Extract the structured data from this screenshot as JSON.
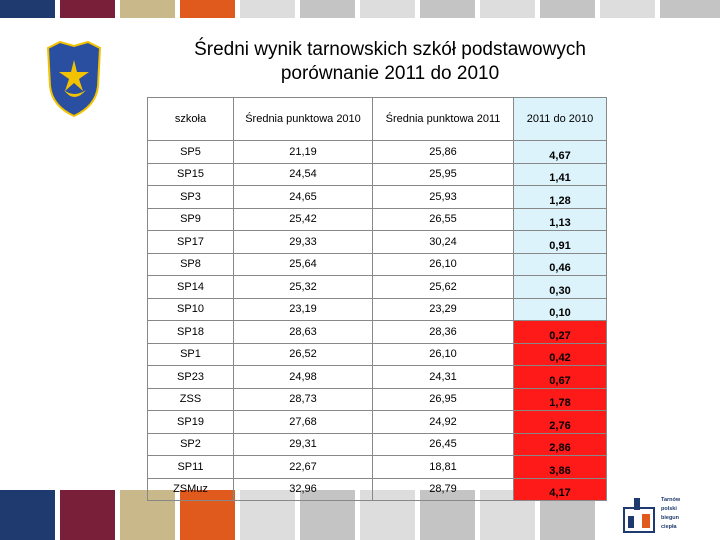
{
  "title": [
    "Średni wynik tarnowskich szkół podstawowych",
    "porównanie 2011 do 2010"
  ],
  "table": {
    "header": [
      "szkoła",
      "Średnia punktowa 2010",
      "Średnia punktowa 2011",
      "2011 do 2010"
    ],
    "rows": [
      {
        "school": "SP5",
        "avg2010": "21,19",
        "avg2011": "25,86",
        "change": "4,67",
        "color": "#dcf3fb"
      },
      {
        "school": "SP15",
        "avg2010": "24,54",
        "avg2011": "25,95",
        "change": "1,41",
        "color": "#dcf3fb"
      },
      {
        "school": "SP3",
        "avg2010": "24,65",
        "avg2011": "25,93",
        "change": "1,28",
        "color": "#dcf3fb"
      },
      {
        "school": "SP9",
        "avg2010": "25,42",
        "avg2011": "26,55",
        "change": "1,13",
        "color": "#dcf3fb"
      },
      {
        "school": "SP17",
        "avg2010": "29,33",
        "avg2011": "30,24",
        "change": "0,91",
        "color": "#dcf3fb"
      },
      {
        "school": "SP8",
        "avg2010": "25,64",
        "avg2011": "26,10",
        "change": "0,46",
        "color": "#dcf3fb"
      },
      {
        "school": "SP14",
        "avg2010": "25,32",
        "avg2011": "25,62",
        "change": "0,30",
        "color": "#dcf3fb"
      },
      {
        "school": "SP10",
        "avg2010": "23,19",
        "avg2011": "23,29",
        "change": "0,10",
        "color": "#dcf3fb"
      },
      {
        "school": "SP18",
        "avg2010": "28,63",
        "avg2011": "28,36",
        "change": "0,27",
        "color": "#ff1a1a"
      },
      {
        "school": "SP1",
        "avg2010": "26,52",
        "avg2011": "26,10",
        "change": "0,42",
        "color": "#ff1a1a"
      },
      {
        "school": "SP23",
        "avg2010": "24,98",
        "avg2011": "24,31",
        "change": "0,67",
        "color": "#ff1a1a"
      },
      {
        "school": "ZSS",
        "avg2010": "28,73",
        "avg2011": "26,95",
        "change": "1,78",
        "color": "#ff1a1a"
      },
      {
        "school": "SP19",
        "avg2010": "27,68",
        "avg2011": "24,92",
        "change": "2,76",
        "color": "#ff1a1a"
      },
      {
        "school": "SP2",
        "avg2010": "29,31",
        "avg2011": "26,45",
        "change": "2,86",
        "color": "#ff1a1a"
      },
      {
        "school": "SP11",
        "avg2010": "22,67",
        "avg2011": "18,81",
        "change": "3,86",
        "color": "#ff1a1a"
      },
      {
        "school": "ZSMuz",
        "avg2010": "32,96",
        "avg2011": "28,79",
        "change": "4,17",
        "color": "#ff1a1a"
      }
    ]
  },
  "logo": [
    "Tarnów",
    "polski",
    "biegun",
    "ciepła"
  ]
}
